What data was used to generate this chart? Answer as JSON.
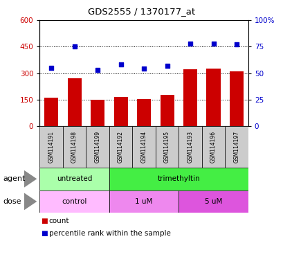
{
  "title": "GDS2555 / 1370177_at",
  "samples": [
    "GSM114191",
    "GSM114198",
    "GSM114199",
    "GSM114192",
    "GSM114194",
    "GSM114195",
    "GSM114193",
    "GSM114196",
    "GSM114197"
  ],
  "bar_values": [
    160,
    270,
    150,
    165,
    152,
    178,
    320,
    325,
    310
  ],
  "dot_values": [
    55,
    75,
    53,
    58,
    54,
    57,
    78,
    78,
    77
  ],
  "bar_color": "#cc0000",
  "dot_color": "#0000cc",
  "ylim_left": [
    0,
    600
  ],
  "ylim_right": [
    0,
    100
  ],
  "yticks_left": [
    0,
    150,
    300,
    450,
    600
  ],
  "yticks_right": [
    0,
    25,
    50,
    75,
    100
  ],
  "hlines": [
    150,
    300,
    450
  ],
  "agent_groups": [
    {
      "label": "untreated",
      "start": 0,
      "end": 3,
      "color": "#aaffaa"
    },
    {
      "label": "trimethyltin",
      "start": 3,
      "end": 9,
      "color": "#44ee44"
    }
  ],
  "dose_groups": [
    {
      "label": "control",
      "start": 0,
      "end": 3,
      "color": "#ffbbff"
    },
    {
      "label": "1 uM",
      "start": 3,
      "end": 6,
      "color": "#ee88ee"
    },
    {
      "label": "5 uM",
      "start": 6,
      "end": 9,
      "color": "#dd55dd"
    }
  ],
  "legend_count_label": "count",
  "legend_pct_label": "percentile rank within the sample",
  "agent_label": "agent",
  "dose_label": "dose"
}
